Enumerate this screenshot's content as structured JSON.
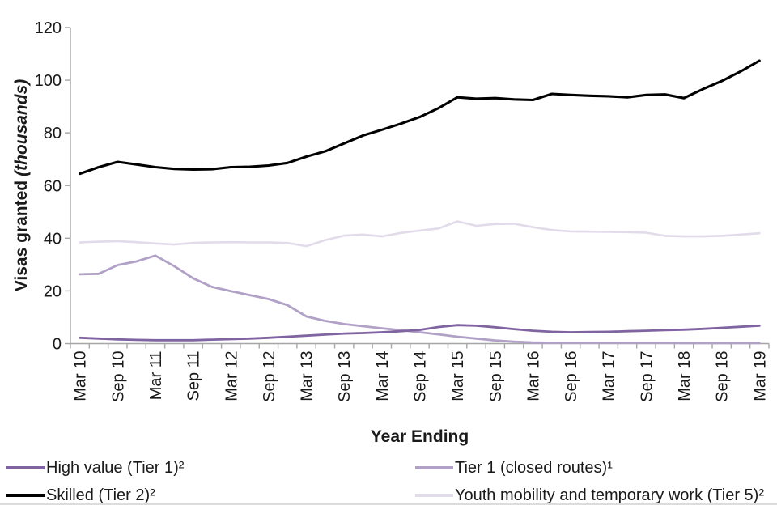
{
  "chart_data": {
    "type": "line",
    "title": "",
    "xlabel": "Year Ending",
    "ylabel_main": "Visas granted",
    "ylabel_unit": "(thousands)",
    "ylim": [
      0,
      120
    ],
    "y_ticks": [
      0,
      20,
      40,
      60,
      80,
      100,
      120
    ],
    "x_label_every": 2,
    "grid": false,
    "legend_position": "bottom",
    "axis_color": "#a6a6a6",
    "text_color": "#1a1a1a",
    "categories": [
      "Mar 10",
      "Jun 10",
      "Sep 10",
      "Dec 10",
      "Mar 11",
      "Jun 11",
      "Sep 11",
      "Dec 11",
      "Mar 12",
      "Jun 12",
      "Sep 12",
      "Dec 12",
      "Mar 13",
      "Jun 13",
      "Sep 13",
      "Dec 13",
      "Mar 14",
      "Jun 14",
      "Sep 14",
      "Dec 14",
      "Mar 15",
      "Jun 15",
      "Sep 15",
      "Dec 15",
      "Mar 16",
      "Jun 16",
      "Sep 16",
      "Dec 16",
      "Mar 17",
      "Jun 17",
      "Sep 17",
      "Dec 17",
      "Mar 18",
      "Jun 18",
      "Sep 18",
      "Dec 18",
      "Mar 19"
    ],
    "series": [
      {
        "name": "High value (Tier 1)²",
        "color": "#8064a2",
        "values": [
          2.2,
          1.9,
          1.6,
          1.4,
          1.3,
          1.3,
          1.3,
          1.5,
          1.7,
          1.9,
          2.2,
          2.6,
          3.0,
          3.4,
          3.8,
          4.0,
          4.3,
          4.7,
          5.2,
          6.3,
          7.0,
          6.8,
          6.2,
          5.5,
          4.9,
          4.5,
          4.3,
          4.4,
          4.5,
          4.7,
          4.9,
          5.1,
          5.3,
          5.6,
          6.0,
          6.4,
          6.8
        ]
      },
      {
        "name": "Tier 1 (closed routes)¹",
        "color": "#b2a1c7",
        "values": [
          26.3,
          26.5,
          29.8,
          31.2,
          33.4,
          29.4,
          24.8,
          21.5,
          19.9,
          18.4,
          16.9,
          14.6,
          10.3,
          8.6,
          7.4,
          6.6,
          5.8,
          5.1,
          4.3,
          3.5,
          2.6,
          1.9,
          1.2,
          0.7,
          0.4,
          0.3,
          0.3,
          0.3,
          0.3,
          0.3,
          0.3,
          0.3,
          0.2,
          0.2,
          0.2,
          0.2,
          0.2
        ]
      },
      {
        "name": "Skilled (Tier 2)²",
        "color": "#000000",
        "values": [
          64.5,
          67.0,
          69.0,
          68.0,
          67.0,
          66.3,
          66.1,
          66.2,
          67.0,
          67.1,
          67.6,
          68.6,
          71.0,
          73.0,
          76.0,
          79.0,
          81.2,
          83.5,
          86.0,
          89.4,
          93.5,
          93.0,
          93.2,
          92.7,
          92.5,
          94.8,
          94.4,
          94.1,
          93.9,
          93.5,
          94.4,
          94.6,
          93.2,
          96.6,
          99.7,
          103.3,
          107.4
        ]
      },
      {
        "name": "Youth mobility and temporary work (Tier 5)²",
        "color": "#e1dbea",
        "values": [
          38.4,
          38.7,
          38.9,
          38.5,
          38.0,
          37.6,
          38.2,
          38.4,
          38.5,
          38.4,
          38.4,
          38.2,
          37.0,
          39.3,
          41.0,
          41.4,
          40.7,
          42.0,
          42.9,
          43.7,
          46.4,
          44.7,
          45.4,
          45.5,
          44.2,
          43.1,
          42.6,
          42.5,
          42.4,
          42.3,
          42.1,
          40.9,
          40.7,
          40.7,
          40.9,
          41.4,
          41.9
        ]
      }
    ]
  }
}
